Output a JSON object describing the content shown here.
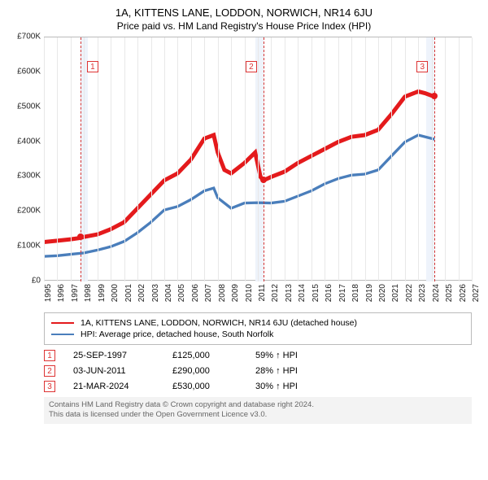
{
  "title": "1A, KITTENS LANE, LODDON, NORWICH, NR14 6JU",
  "subtitle": "Price paid vs. HM Land Registry's House Price Index (HPI)",
  "chart": {
    "type": "line",
    "background_color": "#ffffff",
    "grid_color": "#e8e8e8",
    "highlight_band_color": "#eef3fb",
    "marker_line_color": "#d33333",
    "y": {
      "min": 0,
      "max": 700000,
      "ticks": [
        0,
        100000,
        200000,
        300000,
        400000,
        500000,
        600000,
        700000
      ],
      "tick_labels": [
        "£0",
        "£100K",
        "£200K",
        "£300K",
        "£400K",
        "£500K",
        "£600K",
        "£700K"
      ],
      "label_fontsize": 10
    },
    "x": {
      "min": 1995,
      "max": 2027,
      "ticks": [
        1995,
        1996,
        1997,
        1998,
        1999,
        2000,
        2001,
        2002,
        2003,
        2004,
        2005,
        2006,
        2007,
        2008,
        2009,
        2010,
        2011,
        2012,
        2013,
        2014,
        2015,
        2016,
        2017,
        2018,
        2019,
        2020,
        2021,
        2022,
        2023,
        2024,
        2025,
        2026,
        2027
      ],
      "label_fontsize": 10
    },
    "highlight_bands": [
      {
        "from": 1997.73,
        "to": 1998.3
      },
      {
        "from": 2010.8,
        "to": 2011.42
      },
      {
        "from": 2023.6,
        "to": 2024.22
      }
    ],
    "markers": [
      {
        "n": "1",
        "year": 1997.73,
        "label_y": 0.12
      },
      {
        "n": "2",
        "year": 2011.42,
        "label_y": 0.12
      },
      {
        "n": "3",
        "year": 2024.22,
        "label_y": 0.12
      }
    ],
    "series": [
      {
        "name": "property",
        "color": "#e41a1c",
        "line_width": 1.5,
        "points": [
          [
            1995,
            113000
          ],
          [
            1996,
            117000
          ],
          [
            1997,
            121000
          ],
          [
            1997.73,
            125000
          ],
          [
            1998,
            128000
          ],
          [
            1999,
            135000
          ],
          [
            2000,
            150000
          ],
          [
            2001,
            170000
          ],
          [
            2002,
            210000
          ],
          [
            2003,
            250000
          ],
          [
            2004,
            290000
          ],
          [
            2005,
            310000
          ],
          [
            2006,
            350000
          ],
          [
            2007,
            410000
          ],
          [
            2007.7,
            420000
          ],
          [
            2008,
            370000
          ],
          [
            2008.5,
            320000
          ],
          [
            2009,
            310000
          ],
          [
            2010,
            340000
          ],
          [
            2010.8,
            370000
          ],
          [
            2011.2,
            300000
          ],
          [
            2011.42,
            290000
          ],
          [
            2012,
            300000
          ],
          [
            2013,
            315000
          ],
          [
            2014,
            340000
          ],
          [
            2015,
            360000
          ],
          [
            2016,
            380000
          ],
          [
            2017,
            400000
          ],
          [
            2018,
            415000
          ],
          [
            2019,
            420000
          ],
          [
            2020,
            435000
          ],
          [
            2021,
            480000
          ],
          [
            2022,
            530000
          ],
          [
            2023,
            545000
          ],
          [
            2023.5,
            540000
          ],
          [
            2024.22,
            530000
          ]
        ]
      },
      {
        "name": "hpi",
        "color": "#4a7ebb",
        "line_width": 1,
        "points": [
          [
            1995,
            72000
          ],
          [
            1996,
            74000
          ],
          [
            1997,
            78000
          ],
          [
            1998,
            82000
          ],
          [
            1999,
            90000
          ],
          [
            2000,
            100000
          ],
          [
            2001,
            115000
          ],
          [
            2002,
            140000
          ],
          [
            2003,
            170000
          ],
          [
            2004,
            205000
          ],
          [
            2005,
            215000
          ],
          [
            2006,
            235000
          ],
          [
            2007,
            260000
          ],
          [
            2007.7,
            268000
          ],
          [
            2008,
            240000
          ],
          [
            2009,
            210000
          ],
          [
            2010,
            225000
          ],
          [
            2011,
            226000
          ],
          [
            2012,
            225000
          ],
          [
            2013,
            230000
          ],
          [
            2014,
            245000
          ],
          [
            2015,
            260000
          ],
          [
            2016,
            280000
          ],
          [
            2017,
            295000
          ],
          [
            2018,
            305000
          ],
          [
            2019,
            308000
          ],
          [
            2020,
            320000
          ],
          [
            2021,
            360000
          ],
          [
            2022,
            400000
          ],
          [
            2023,
            420000
          ],
          [
            2024,
            410000
          ],
          [
            2024.22,
            408000
          ]
        ]
      }
    ],
    "sale_points": [
      {
        "year": 1997.73,
        "value": 125000,
        "color": "#e41a1c"
      },
      {
        "year": 2011.42,
        "value": 290000,
        "color": "#e41a1c"
      },
      {
        "year": 2024.22,
        "value": 530000,
        "color": "#e41a1c"
      }
    ]
  },
  "legend": {
    "items": [
      {
        "color": "#e41a1c",
        "label": "1A, KITTENS LANE, LODDON, NORWICH, NR14 6JU (detached house)"
      },
      {
        "color": "#4a7ebb",
        "label": "HPI: Average price, detached house, South Norfolk"
      }
    ]
  },
  "events": [
    {
      "n": "1",
      "date": "25-SEP-1997",
      "price": "£125,000",
      "hpi": "59% ↑ HPI"
    },
    {
      "n": "2",
      "date": "03-JUN-2011",
      "price": "£290,000",
      "hpi": "28% ↑ HPI"
    },
    {
      "n": "3",
      "date": "21-MAR-2024",
      "price": "£530,000",
      "hpi": "30% ↑ HPI"
    }
  ],
  "footer_line1": "Contains HM Land Registry data © Crown copyright and database right 2024.",
  "footer_line2": "This data is licensed under the Open Government Licence v3.0."
}
